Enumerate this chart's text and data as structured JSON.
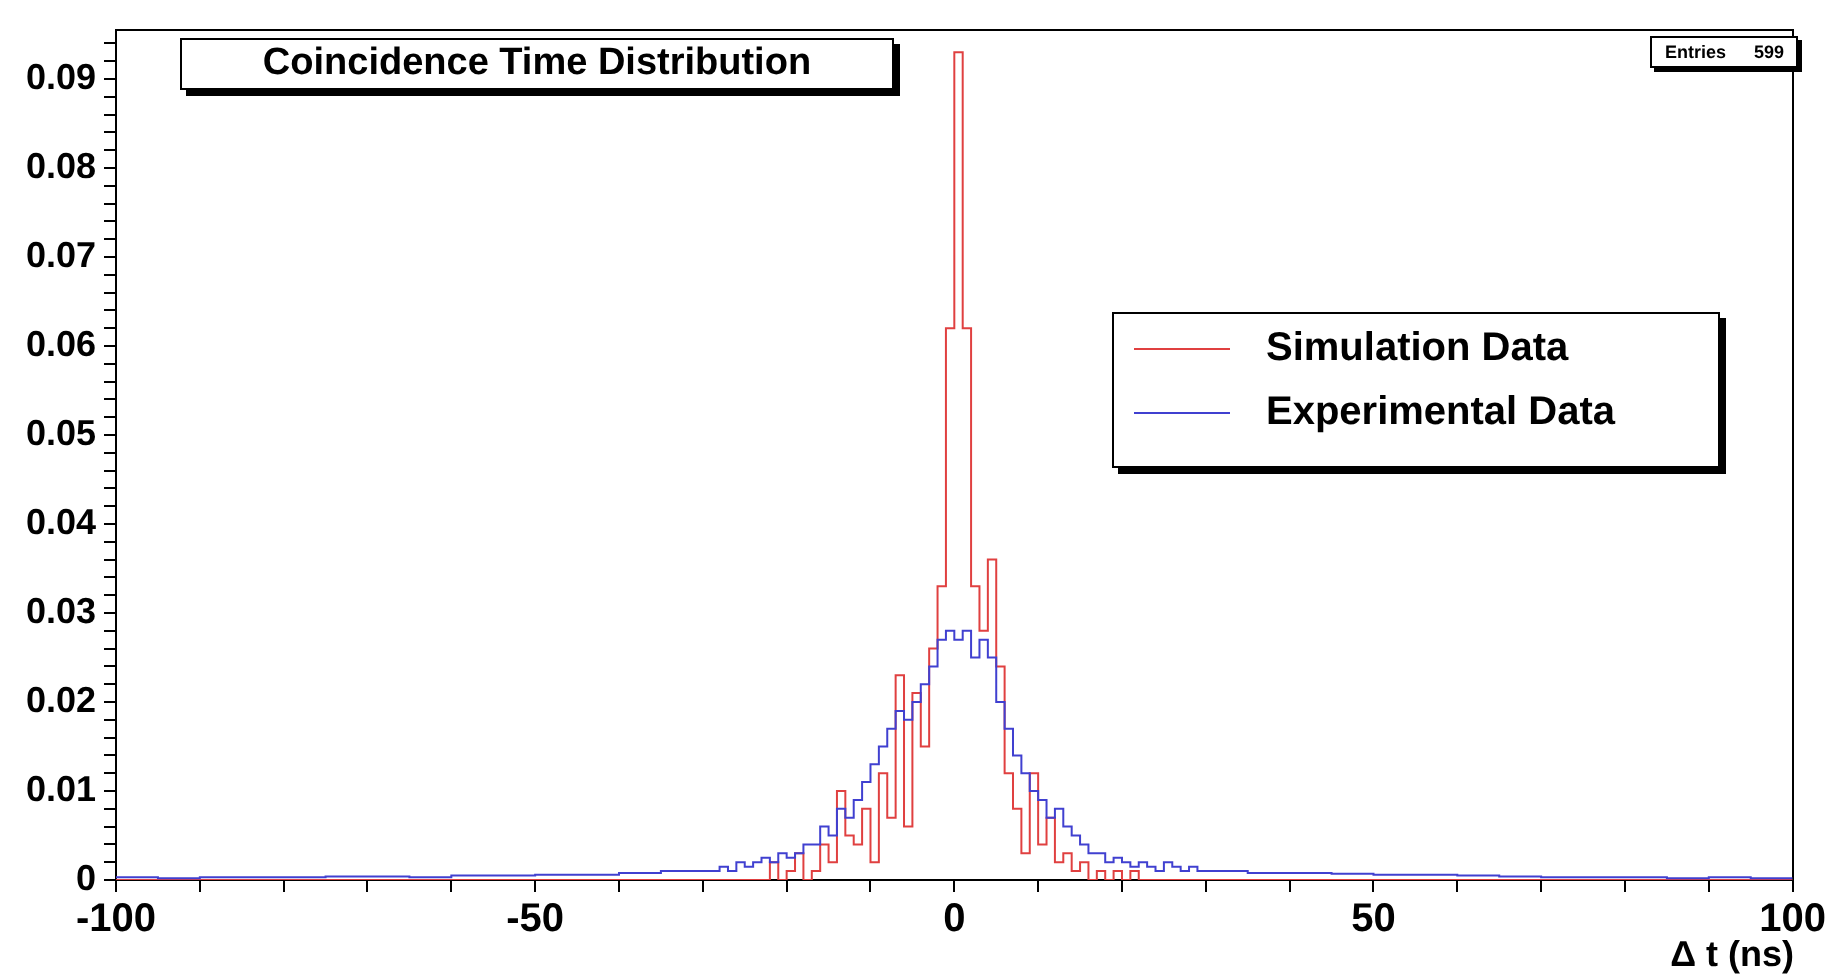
{
  "chart_data": {
    "type": "histogram",
    "title": "Coincidence Time Distribution",
    "xlabel": "Δ t (ns)",
    "annotations": [
      "Entries 599"
    ],
    "legend": "right",
    "bins": [
      -100,
      -95,
      -90,
      -85,
      -80,
      -75,
      -70,
      -65,
      -60,
      -55,
      -50,
      -45,
      -40,
      -35,
      -30,
      -29,
      -28,
      -27,
      -26,
      -25,
      -24,
      -23,
      -22,
      -21,
      -20,
      -19,
      -18,
      -17,
      -16,
      -15,
      -14,
      -13,
      -12,
      -11,
      -10,
      -9,
      -8,
      -7,
      -6,
      -5,
      -4,
      -3,
      -2,
      -1,
      0,
      1,
      2,
      3,
      4,
      5,
      6,
      7,
      8,
      9,
      10,
      11,
      12,
      13,
      14,
      15,
      16,
      17,
      18,
      19,
      20,
      21,
      22,
      23,
      24,
      25,
      26,
      27,
      28,
      29,
      30,
      35,
      40,
      45,
      50,
      55,
      60,
      65,
      70,
      75,
      80,
      85,
      90,
      95,
      100
    ],
    "series": [
      {
        "name": "Simulation Data",
        "color": "#e04040",
        "values": [
          0,
          0,
          0,
          0,
          0,
          0,
          0,
          0,
          0,
          0,
          0,
          0,
          0,
          0,
          0,
          0,
          0,
          0,
          0,
          0,
          0,
          0,
          0.002,
          0,
          0.001,
          0.003,
          0,
          0.001,
          0.004,
          0.002,
          0.01,
          0.005,
          0.004,
          0.008,
          0.002,
          0.012,
          0.007,
          0.023,
          0.006,
          0.021,
          0.015,
          0.026,
          0.033,
          0.062,
          0.093,
          0.062,
          0.033,
          0.028,
          0.036,
          0.024,
          0.012,
          0.008,
          0.003,
          0.012,
          0.004,
          0.007,
          0.002,
          0.003,
          0.001,
          0.002,
          0,
          0.001,
          0,
          0.001,
          0,
          0.001,
          0,
          0,
          0,
          0,
          0,
          0,
          0,
          0,
          0,
          0,
          0,
          0,
          0,
          0,
          0,
          0,
          0,
          0,
          0,
          0,
          0,
          0
        ]
      },
      {
        "name": "Experimental Data",
        "color": "#4040d0",
        "values": [
          0.0003,
          0.0002,
          0.0003,
          0.0003,
          0.0003,
          0.0004,
          0.0004,
          0.0003,
          0.0005,
          0.0005,
          0.0006,
          0.0006,
          0.0008,
          0.001,
          0.001,
          0.001,
          0.0015,
          0.001,
          0.002,
          0.0015,
          0.002,
          0.0025,
          0.002,
          0.003,
          0.0025,
          0.003,
          0.004,
          0.004,
          0.006,
          0.005,
          0.008,
          0.007,
          0.009,
          0.011,
          0.013,
          0.015,
          0.017,
          0.019,
          0.018,
          0.02,
          0.022,
          0.024,
          0.027,
          0.028,
          0.027,
          0.028,
          0.025,
          0.027,
          0.025,
          0.02,
          0.017,
          0.014,
          0.012,
          0.01,
          0.009,
          0.007,
          0.008,
          0.006,
          0.005,
          0.004,
          0.003,
          0.003,
          0.002,
          0.0025,
          0.002,
          0.0015,
          0.002,
          0.0015,
          0.001,
          0.002,
          0.0015,
          0.001,
          0.0015,
          0.001,
          0.001,
          0.0008,
          0.0008,
          0.0007,
          0.0006,
          0.0006,
          0.0005,
          0.0004,
          0.0003,
          0.0003,
          0.0003,
          0.0002,
          0.0003,
          0.0002
        ]
      }
    ],
    "xlim": [
      -100,
      100
    ],
    "xticks": [
      -100,
      {
        "value": -90,
        "label": null
      },
      {
        "value": -80,
        "label": null
      },
      {
        "value": -70,
        "label": null
      },
      {
        "value": -60,
        "label": null
      },
      -50,
      {
        "value": -40,
        "label": null
      },
      {
        "value": -30,
        "label": null
      },
      {
        "value": -20,
        "label": null
      },
      {
        "value": -10,
        "label": null
      },
      0,
      {
        "value": 10,
        "label": null
      },
      {
        "value": 20,
        "label": null
      },
      {
        "value": 30,
        "label": null
      },
      {
        "value": 40,
        "label": null
      },
      50,
      {
        "value": 60,
        "label": null
      },
      {
        "value": 70,
        "label": null
      },
      {
        "value": 80,
        "label": null
      },
      {
        "value": 90,
        "label": null
      },
      100
    ],
    "ylim": [
      0,
      0.0955
    ],
    "yticks": [
      0,
      {
        "value": 0.002,
        "label": null
      },
      {
        "value": 0.004,
        "label": null
      },
      {
        "value": 0.006,
        "label": null
      },
      {
        "value": 0.008,
        "label": null
      },
      0.01,
      {
        "value": 0.012,
        "label": null
      },
      {
        "value": 0.014,
        "label": null
      },
      {
        "value": 0.016,
        "label": null
      },
      {
        "value": 0.018,
        "label": null
      },
      0.02,
      {
        "value": 0.022,
        "label": null
      },
      {
        "value": 0.024,
        "label": null
      },
      {
        "value": 0.026,
        "label": null
      },
      {
        "value": 0.028,
        "label": null
      },
      0.03,
      {
        "value": 0.032,
        "label": null
      },
      {
        "value": 0.034,
        "label": null
      },
      {
        "value": 0.036,
        "label": null
      },
      {
        "value": 0.038,
        "label": null
      },
      0.04,
      {
        "value": 0.042,
        "label": null
      },
      {
        "value": 0.044,
        "label": null
      },
      {
        "value": 0.046,
        "label": null
      },
      {
        "value": 0.048,
        "label": null
      },
      0.05,
      {
        "value": 0.052,
        "label": null
      },
      {
        "value": 0.054,
        "label": null
      },
      {
        "value": 0.056,
        "label": null
      },
      {
        "value": 0.058,
        "label": null
      },
      0.06,
      {
        "value": 0.062,
        "label": null
      },
      {
        "value": 0.064,
        "label": null
      },
      {
        "value": 0.066,
        "label": null
      },
      {
        "value": 0.068,
        "label": null
      },
      0.07,
      {
        "value": 0.072,
        "label": null
      },
      {
        "value": 0.074,
        "label": null
      },
      {
        "value": 0.076,
        "label": null
      },
      {
        "value": 0.078,
        "label": null
      },
      0.08,
      {
        "value": 0.082,
        "label": null
      },
      {
        "value": 0.084,
        "label": null
      },
      {
        "value": 0.086,
        "label": null
      },
      {
        "value": 0.088,
        "label": null
      },
      0.09,
      {
        "value": 0.092,
        "label": null
      },
      {
        "value": 0.094,
        "label": null
      }
    ]
  }
}
